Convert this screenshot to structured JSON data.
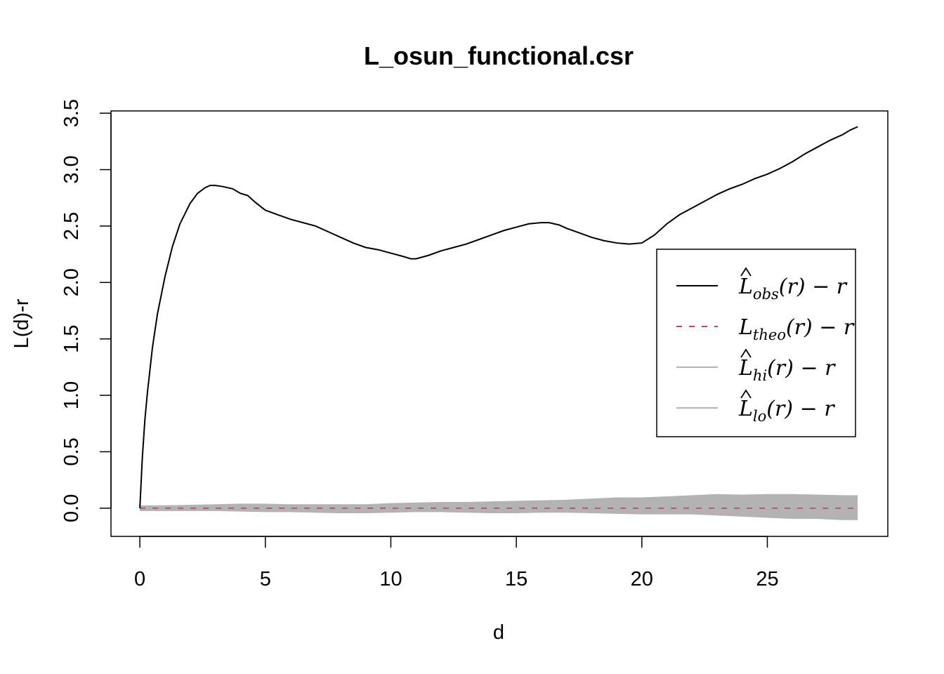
{
  "chart_data": {
    "type": "line",
    "title": "L_osun_functional.csr",
    "xlabel": "d",
    "ylabel": "L(d)-r",
    "xlim": [
      -1.15,
      29.8
    ],
    "ylim": [
      -0.25,
      3.52
    ],
    "x_ticks": [
      0,
      5,
      10,
      15,
      20,
      25
    ],
    "x_tick_labels": [
      "0",
      "5",
      "10",
      "15",
      "20",
      "25"
    ],
    "y_ticks": [
      0.0,
      0.5,
      1.0,
      1.5,
      2.0,
      2.5,
      3.0,
      3.5
    ],
    "y_tick_labels": [
      "0.0",
      "0.5",
      "1.0",
      "1.5",
      "2.0",
      "2.5",
      "3.0",
      "3.5"
    ],
    "grid": false,
    "legend_position": "right",
    "series": [
      {
        "key": "obs",
        "legend_main": "L",
        "legend_sub": "obs",
        "legend_rest": "(r) − r",
        "color": "#000000",
        "dash": "none",
        "x": [
          0,
          0.1,
          0.2,
          0.3,
          0.5,
          0.7,
          1.0,
          1.3,
          1.6,
          2.0,
          2.3,
          2.6,
          2.8,
          3.0,
          3.3,
          3.7,
          4.0,
          4.3,
          4.6,
          5.0,
          5.5,
          6.0,
          6.5,
          7.0,
          7.5,
          8.0,
          8.5,
          9.0,
          9.5,
          10.0,
          10.5,
          10.8,
          11.0,
          11.5,
          12.0,
          12.5,
          13.0,
          13.5,
          14.0,
          14.5,
          15.0,
          15.5,
          16.0,
          16.3,
          16.7,
          17.0,
          17.5,
          18.0,
          18.5,
          19.0,
          19.5,
          20.0,
          20.5,
          21.0,
          21.5,
          22.0,
          22.5,
          23.0,
          23.5,
          24.0,
          24.5,
          25.0,
          25.5,
          26.0,
          26.5,
          27.0,
          27.5,
          28.0,
          28.3,
          28.6
        ],
        "y": [
          0.0,
          0.45,
          0.78,
          1.02,
          1.42,
          1.72,
          2.05,
          2.32,
          2.52,
          2.7,
          2.79,
          2.84,
          2.86,
          2.86,
          2.85,
          2.83,
          2.79,
          2.77,
          2.71,
          2.64,
          2.6,
          2.56,
          2.53,
          2.5,
          2.45,
          2.4,
          2.35,
          2.31,
          2.29,
          2.26,
          2.23,
          2.21,
          2.21,
          2.24,
          2.28,
          2.31,
          2.34,
          2.38,
          2.42,
          2.46,
          2.49,
          2.52,
          2.53,
          2.53,
          2.51,
          2.48,
          2.44,
          2.4,
          2.37,
          2.35,
          2.34,
          2.35,
          2.42,
          2.52,
          2.6,
          2.66,
          2.72,
          2.78,
          2.83,
          2.87,
          2.92,
          2.96,
          3.01,
          3.07,
          3.14,
          3.2,
          3.26,
          3.31,
          3.35,
          3.38
        ]
      },
      {
        "key": "theo",
        "legend_main": "L",
        "legend_sub": "theo",
        "legend_rest": "(r) − r",
        "color": "#d03c5e",
        "dash": "8,10",
        "x": [
          0,
          28.6
        ],
        "y": [
          0.0,
          0.0
        ]
      },
      {
        "key": "hi",
        "legend_main": "L",
        "legend_sub": "hi",
        "legend_rest": "(r) − r",
        "color": "#b3b3b3",
        "dash": "none",
        "x": [
          0,
          1,
          2,
          3,
          4,
          5,
          6,
          7,
          8,
          9,
          10,
          11,
          12,
          13,
          14,
          15,
          16,
          17,
          18,
          19,
          20,
          21,
          22,
          23,
          24,
          25,
          26,
          27,
          28,
          28.6
        ],
        "y": [
          0.02,
          0.02,
          0.025,
          0.03,
          0.035,
          0.035,
          0.03,
          0.03,
          0.03,
          0.03,
          0.04,
          0.045,
          0.05,
          0.05,
          0.055,
          0.06,
          0.065,
          0.07,
          0.08,
          0.09,
          0.09,
          0.1,
          0.11,
          0.12,
          0.115,
          0.12,
          0.12,
          0.115,
          0.11,
          0.11
        ]
      },
      {
        "key": "lo",
        "legend_main": "L",
        "legend_sub": "lo",
        "legend_rest": "(r) − r",
        "color": "#b3b3b3",
        "dash": "none",
        "x": [
          0,
          1,
          2,
          3,
          4,
          5,
          6,
          7,
          8,
          9,
          10,
          11,
          12,
          13,
          14,
          15,
          16,
          17,
          18,
          19,
          20,
          21,
          22,
          23,
          24,
          25,
          26,
          27,
          28,
          28.6
        ],
        "y": [
          -0.02,
          -0.02,
          -0.02,
          -0.02,
          -0.025,
          -0.03,
          -0.03,
          -0.035,
          -0.04,
          -0.04,
          -0.035,
          -0.03,
          -0.03,
          -0.035,
          -0.04,
          -0.04,
          -0.035,
          -0.035,
          -0.04,
          -0.045,
          -0.05,
          -0.05,
          -0.05,
          -0.06,
          -0.07,
          -0.08,
          -0.09,
          -0.09,
          -0.1,
          -0.1
        ]
      }
    ]
  }
}
